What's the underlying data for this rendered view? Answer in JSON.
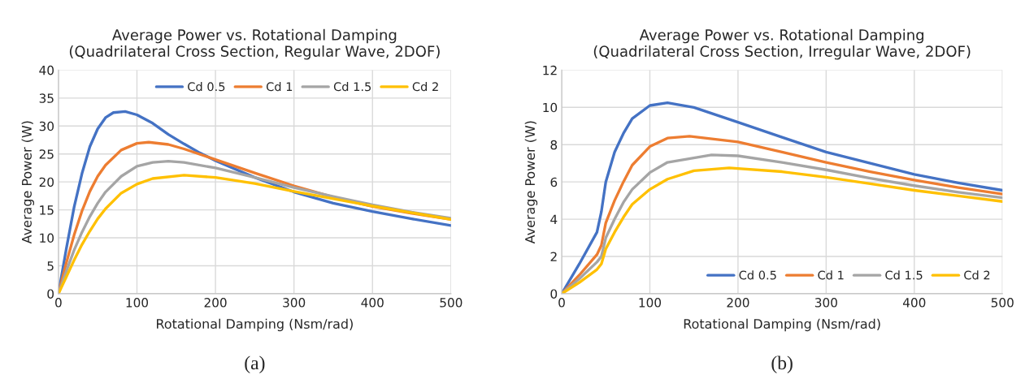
{
  "chart_data": [
    {
      "type": "line",
      "title": "Average Power vs. Rotational Damping\n(Quadrilateral Cross Section, Regular Wave, 2DOF)",
      "xlabel": "Rotational Damping (Nsm/rad)",
      "ylabel": "Average Power (W)",
      "xlim": [
        0,
        500
      ],
      "ylim": [
        0,
        40
      ],
      "xticks": [
        0,
        100,
        200,
        300,
        400,
        500
      ],
      "yticks": [
        0,
        5,
        10,
        15,
        20,
        25,
        30,
        35,
        40
      ],
      "grid": true,
      "legend": "top right",
      "annotations": [
        "(a)"
      ],
      "series": [
        {
          "name": "Cd 0.5",
          "color": "#4472c4",
          "x": [
            0,
            10,
            20,
            30,
            40,
            50,
            60,
            70,
            85,
            100,
            120,
            140,
            160,
            180,
            200,
            250,
            300,
            350,
            400,
            450,
            500
          ],
          "values": [
            0,
            8,
            15.5,
            21.5,
            26.3,
            29.5,
            31.5,
            32.4,
            32.6,
            32.0,
            30.5,
            28.5,
            26.8,
            25.2,
            23.8,
            20.8,
            18.2,
            16.2,
            14.7,
            13.4,
            12.2
          ]
        },
        {
          "name": "Cd 1",
          "color": "#ed7d31",
          "x": [
            0,
            10,
            20,
            30,
            40,
            50,
            60,
            80,
            100,
            115,
            140,
            160,
            200,
            250,
            300,
            350,
            400,
            450,
            500
          ],
          "values": [
            0,
            5.5,
            10.5,
            14.8,
            18.3,
            21,
            23,
            25.7,
            26.9,
            27.1,
            26.7,
            25.9,
            24,
            21.6,
            19.3,
            17.3,
            15.6,
            14.4,
            13.3
          ]
        },
        {
          "name": "Cd 1.5",
          "color": "#a5a5a5",
          "x": [
            0,
            10,
            20,
            30,
            40,
            50,
            60,
            80,
            100,
            120,
            140,
            160,
            200,
            250,
            300,
            350,
            400,
            450,
            500
          ],
          "values": [
            0,
            4,
            7.8,
            11,
            13.8,
            16.2,
            18.2,
            21,
            22.8,
            23.5,
            23.7,
            23.5,
            22.5,
            20.8,
            19,
            17.4,
            15.9,
            14.6,
            13.5
          ]
        },
        {
          "name": "Cd 2",
          "color": "#ffc000",
          "x": [
            0,
            10,
            20,
            30,
            40,
            50,
            60,
            80,
            100,
            120,
            160,
            200,
            250,
            300,
            350,
            400,
            450,
            500
          ],
          "values": [
            0,
            3,
            6,
            8.8,
            11.2,
            13.4,
            15.2,
            18,
            19.6,
            20.6,
            21.2,
            20.8,
            19.7,
            18.3,
            17,
            15.7,
            14.5,
            13.3
          ]
        }
      ]
    },
    {
      "type": "line",
      "title": "Average Power vs. Rotational Damping\n(Quadrilateral Cross Section, Irregular Wave, 2DOF)",
      "xlabel": "Rotational Damping (Nsm/rad)",
      "ylabel": "Average Power (W)",
      "xlim": [
        0,
        500
      ],
      "ylim": [
        0,
        12
      ],
      "xticks": [
        0,
        100,
        200,
        300,
        400,
        500
      ],
      "yticks": [
        0,
        2,
        4,
        6,
        8,
        10,
        12
      ],
      "grid": true,
      "legend": "bottom right",
      "annotations": [
        "(b)"
      ],
      "series": [
        {
          "name": "Cd 0.5",
          "color": "#4472c4",
          "x": [
            0,
            20,
            40,
            45,
            50,
            60,
            70,
            80,
            100,
            120,
            150,
            200,
            250,
            300,
            350,
            400,
            450,
            500
          ],
          "values": [
            0,
            1.6,
            3.3,
            4.4,
            6.0,
            7.6,
            8.6,
            9.4,
            10.1,
            10.25,
            10.0,
            9.2,
            8.4,
            7.6,
            7.0,
            6.4,
            5.95,
            5.55
          ]
        },
        {
          "name": "Cd 1",
          "color": "#ed7d31",
          "x": [
            0,
            20,
            40,
            45,
            50,
            60,
            70,
            80,
            100,
            120,
            145,
            200,
            250,
            300,
            350,
            400,
            450,
            500
          ],
          "values": [
            0,
            1.0,
            2.1,
            2.6,
            3.8,
            5.0,
            6.0,
            6.9,
            7.9,
            8.35,
            8.45,
            8.15,
            7.6,
            7.05,
            6.55,
            6.1,
            5.7,
            5.35
          ]
        },
        {
          "name": "Cd 1.5",
          "color": "#a5a5a5",
          "x": [
            0,
            20,
            40,
            45,
            50,
            60,
            70,
            80,
            100,
            120,
            170,
            200,
            250,
            300,
            350,
            400,
            450,
            500
          ],
          "values": [
            0,
            0.8,
            1.7,
            2.0,
            3.0,
            4.0,
            4.9,
            5.6,
            6.5,
            7.05,
            7.45,
            7.4,
            7.05,
            6.65,
            6.2,
            5.8,
            5.45,
            5.15
          ]
        },
        {
          "name": "Cd 2",
          "color": "#ffc000",
          "x": [
            0,
            20,
            40,
            45,
            50,
            60,
            70,
            80,
            100,
            120,
            150,
            190,
            250,
            300,
            350,
            400,
            450,
            500
          ],
          "values": [
            0,
            0.6,
            1.3,
            1.6,
            2.4,
            3.3,
            4.1,
            4.8,
            5.6,
            6.15,
            6.6,
            6.75,
            6.55,
            6.25,
            5.9,
            5.55,
            5.25,
            4.95
          ]
        }
      ]
    }
  ]
}
